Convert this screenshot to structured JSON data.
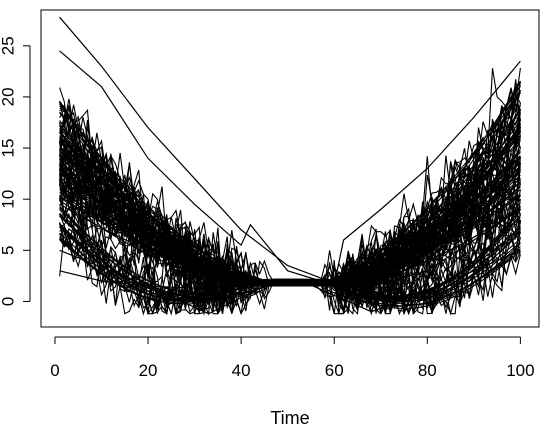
{
  "chart_data": {
    "type": "line",
    "title": "",
    "xlabel": "Time",
    "ylabel": "",
    "xlim": [
      -3,
      104
    ],
    "ylim": [
      -2.5,
      28.5
    ],
    "x_ticks": [
      0,
      20,
      40,
      60,
      80,
      100
    ],
    "y_ticks": [
      0,
      5,
      10,
      15,
      20,
      25
    ],
    "x_tick_labels": [
      "0",
      "20",
      "40",
      "60",
      "80",
      "100"
    ],
    "y_tick_labels": [
      "0",
      "5",
      "10",
      "15",
      "20",
      "25"
    ],
    "grid": false,
    "legend": "none",
    "line_color": "#000000",
    "n_series": 120,
    "x": [
      1,
      100
    ],
    "representative_series": [
      {
        "x": [
          1,
          10,
          20,
          30,
          40,
          50,
          60,
          70,
          80,
          90,
          100
        ],
        "values": [
          27.8,
          23.0,
          17.0,
          12.0,
          7.0,
          3.5,
          1.8,
          2.0,
          4.0,
          8.0,
          12.0
        ]
      },
      {
        "x": [
          1,
          10,
          20,
          30,
          40,
          42,
          50,
          60,
          70,
          80,
          90,
          100
        ],
        "values": [
          24.5,
          21.0,
          14.0,
          9.5,
          5.5,
          7.5,
          3.0,
          1.6,
          1.7,
          3.0,
          6.0,
          9.0
        ]
      },
      {
        "x": [
          1,
          10,
          20,
          30,
          40,
          50,
          60,
          62,
          70,
          80,
          90,
          100
        ],
        "values": [
          3.0,
          2.0,
          1.5,
          1.3,
          1.5,
          1.6,
          1.6,
          6.0,
          9.0,
          13.0,
          18.0,
          23.5
        ]
      },
      {
        "x": [
          1,
          20,
          30,
          40,
          50,
          60,
          70,
          80,
          100
        ],
        "values": [
          13.0,
          8.5,
          5.0,
          2.0,
          1.7,
          2.0,
          4.5,
          7.0,
          13.0
        ]
      },
      {
        "x": [
          1,
          20,
          33,
          45,
          55,
          68,
          80,
          100
        ],
        "values": [
          5.0,
          1.5,
          -1.2,
          1.5,
          1.6,
          -1.0,
          1.0,
          5.0
        ]
      }
    ]
  }
}
